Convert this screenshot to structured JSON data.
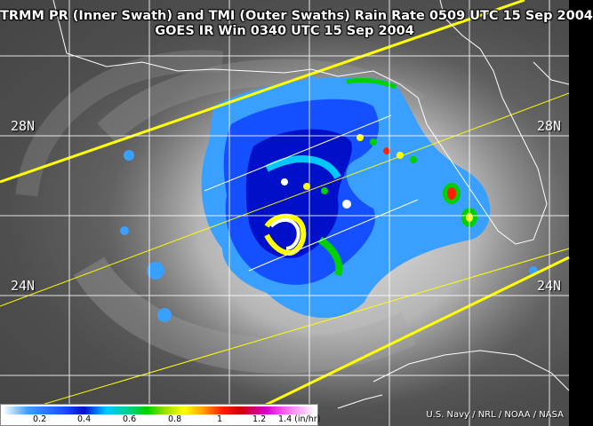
{
  "title": {
    "line1": "TRMM PR (Inner Swath) and TMI (Outer Swaths) Rain Rate 0509 UTC  15 Sep 2004",
    "line2": "GOES IR Win 0340 UTC  15 Sep 2004"
  },
  "latitude_labels": {
    "lat_28_left": "28N",
    "lat_28_right": "28N",
    "lat_24_left": "24N",
    "lat_24_right": "24N"
  },
  "colorbar": {
    "ticks": [
      "0.2",
      "0.4",
      "0.6",
      "0.8",
      "1",
      "1.2",
      "1.4 (in/hr)"
    ]
  },
  "credit": "U.S. Navy / NRL / NOAA / NASA",
  "colors": {
    "grid": "#ffffff",
    "swath_edges": "#ffff00",
    "coastline": "#ffffff",
    "light_rain": "#3aa0ff",
    "moderate_rain": "#0010c8",
    "heavy_rain": "#00d000",
    "intense_rain": "#ff2000",
    "extreme_rain": "#ffffff"
  }
}
